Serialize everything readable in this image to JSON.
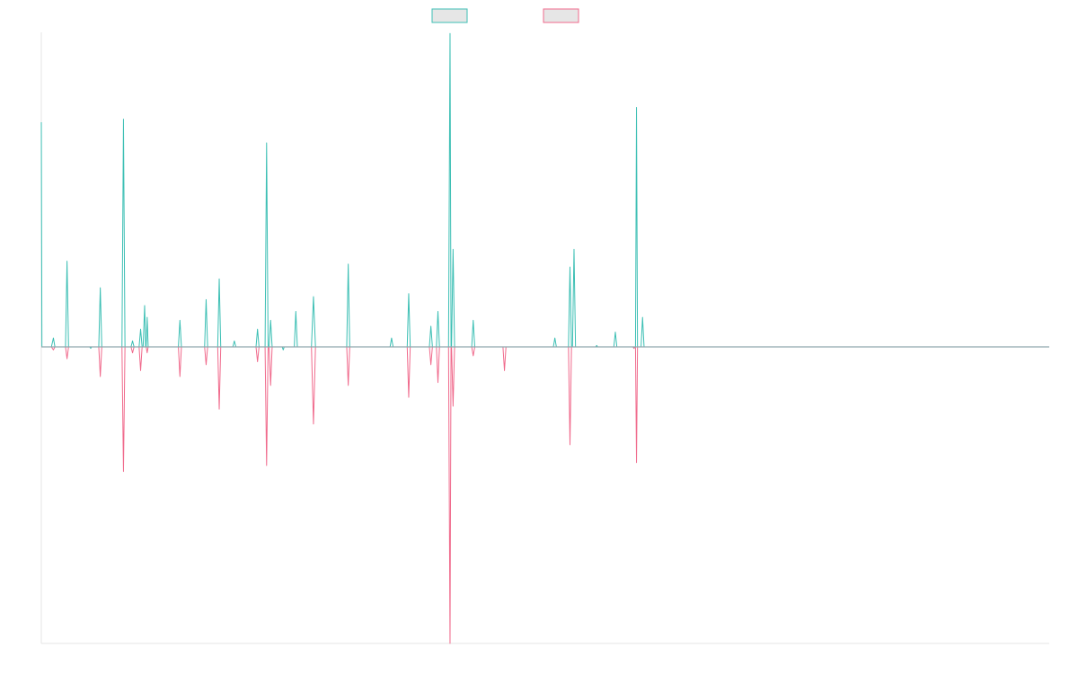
{
  "chart_data": {
    "type": "line",
    "title": "",
    "xlabel": "",
    "ylabel": "",
    "grid": false,
    "legend": "top-center",
    "xlim": [
      0,
      1000
    ],
    "ylim": [
      -1.0,
      1.0
    ],
    "baseline": 0,
    "series": [
      {
        "color": "#3cbfb4",
        "swatch_fill": "#e6e6e6",
        "points": [
          [
            0,
            0.76
          ],
          [
            0.6,
            0
          ],
          [
            10,
            0
          ],
          [
            12,
            0.03
          ],
          [
            13.5,
            0
          ],
          [
            24,
            0
          ],
          [
            25.5,
            0.29
          ],
          [
            27,
            0
          ],
          [
            48,
            0
          ],
          [
            49,
            -0.005
          ],
          [
            50,
            0
          ],
          [
            57,
            0
          ],
          [
            58.5,
            0.2
          ],
          [
            60,
            0
          ],
          [
            80,
            0
          ],
          [
            81.5,
            0.77
          ],
          [
            83,
            0
          ],
          [
            89,
            0
          ],
          [
            90.5,
            0.02
          ],
          [
            92,
            0
          ],
          [
            97,
            0
          ],
          [
            98.5,
            0.06
          ],
          [
            100,
            0
          ],
          [
            101,
            0
          ],
          [
            102.5,
            0.14
          ],
          [
            103.5,
            0
          ],
          [
            104,
            0
          ],
          [
            105,
            0.1
          ],
          [
            106,
            0
          ],
          [
            136,
            0
          ],
          [
            137.5,
            0.09
          ],
          [
            139,
            0
          ],
          [
            162,
            0
          ],
          [
            163.5,
            0.16
          ],
          [
            165,
            0
          ],
          [
            175,
            0
          ],
          [
            176.5,
            0.23
          ],
          [
            178,
            0
          ],
          [
            190,
            0
          ],
          [
            191.5,
            0.02
          ],
          [
            193,
            0
          ],
          [
            213,
            0
          ],
          [
            214.5,
            0.06
          ],
          [
            216,
            0
          ],
          [
            222,
            0
          ],
          [
            223.5,
            0.69
          ],
          [
            225,
            0
          ],
          [
            226,
            0
          ],
          [
            227.5,
            0.09
          ],
          [
            229,
            0
          ],
          [
            239,
            0
          ],
          [
            240,
            -0.01
          ],
          [
            241,
            0
          ],
          [
            251,
            0
          ],
          [
            252.5,
            0.12
          ],
          [
            254,
            0
          ],
          [
            268,
            0
          ],
          [
            270,
            0.17
          ],
          [
            272,
            0
          ],
          [
            303,
            0
          ],
          [
            304.5,
            0.28
          ],
          [
            306,
            0
          ],
          [
            346,
            0
          ],
          [
            347.5,
            0.03
          ],
          [
            349,
            0
          ],
          [
            363,
            0
          ],
          [
            364.5,
            0.18
          ],
          [
            366,
            0
          ],
          [
            385,
            0
          ],
          [
            386.5,
            0.07
          ],
          [
            388,
            0
          ],
          [
            392,
            0
          ],
          [
            393.5,
            0.12
          ],
          [
            395,
            0
          ],
          [
            404,
            0
          ],
          [
            405.5,
            1.06
          ],
          [
            406.5,
            0
          ],
          [
            407,
            0
          ],
          [
            408.5,
            0.33
          ],
          [
            410,
            0
          ],
          [
            427,
            0
          ],
          [
            428.5,
            0.09
          ],
          [
            430,
            0
          ],
          [
            508,
            0
          ],
          [
            509.5,
            0.03
          ],
          [
            511,
            0
          ],
          [
            523,
            0
          ],
          [
            524.5,
            0.27
          ],
          [
            526,
            0
          ],
          [
            527,
            0
          ],
          [
            528.5,
            0.33
          ],
          [
            530,
            0
          ],
          [
            550,
            0
          ],
          [
            551,
            0.005
          ],
          [
            552,
            0
          ],
          [
            568,
            0
          ],
          [
            569.5,
            0.05
          ],
          [
            571,
            0
          ],
          [
            587,
            0
          ],
          [
            588,
            -0.005
          ],
          [
            589,
            0
          ],
          [
            589.5,
            0
          ],
          [
            590.5,
            0.81
          ],
          [
            591.5,
            0
          ],
          [
            595,
            0
          ],
          [
            596.5,
            0.1
          ],
          [
            598,
            0
          ],
          [
            1000,
            0
          ]
        ]
      },
      {
        "color": "#f06a8c",
        "swatch_fill": "#e6e6e6",
        "points": [
          [
            0,
            0
          ],
          [
            10,
            0
          ],
          [
            12,
            -0.01
          ],
          [
            13.5,
            0
          ],
          [
            24,
            0
          ],
          [
            25.5,
            -0.04
          ],
          [
            27,
            0
          ],
          [
            57,
            0
          ],
          [
            58.5,
            -0.1
          ],
          [
            60,
            0
          ],
          [
            80,
            0
          ],
          [
            81.5,
            -0.42
          ],
          [
            83,
            0
          ],
          [
            89,
            0
          ],
          [
            90.5,
            -0.02
          ],
          [
            92,
            0
          ],
          [
            97,
            0
          ],
          [
            98.5,
            -0.08
          ],
          [
            100,
            0
          ],
          [
            104,
            0
          ],
          [
            105,
            -0.02
          ],
          [
            106,
            0
          ],
          [
            136,
            0
          ],
          [
            137.5,
            -0.1
          ],
          [
            139,
            0
          ],
          [
            162,
            0
          ],
          [
            163.5,
            -0.06
          ],
          [
            165,
            0
          ],
          [
            175,
            0
          ],
          [
            176.5,
            -0.21
          ],
          [
            178,
            0
          ],
          [
            213,
            0
          ],
          [
            214.5,
            -0.05
          ],
          [
            216,
            0
          ],
          [
            222,
            0
          ],
          [
            223.5,
            -0.4
          ],
          [
            225,
            0
          ],
          [
            226,
            0
          ],
          [
            227.5,
            -0.13
          ],
          [
            229,
            0
          ],
          [
            268,
            0
          ],
          [
            270,
            -0.26
          ],
          [
            272,
            0
          ],
          [
            303,
            0
          ],
          [
            304.5,
            -0.13
          ],
          [
            306,
            0
          ],
          [
            363,
            0
          ],
          [
            364.5,
            -0.17
          ],
          [
            366,
            0
          ],
          [
            385,
            0
          ],
          [
            386.5,
            -0.06
          ],
          [
            388,
            0
          ],
          [
            392,
            0
          ],
          [
            393.5,
            -0.12
          ],
          [
            395,
            0
          ],
          [
            404,
            0
          ],
          [
            405.5,
            -1.0
          ],
          [
            406.5,
            0
          ],
          [
            407,
            0
          ],
          [
            408.5,
            -0.2
          ],
          [
            410,
            0
          ],
          [
            427,
            0
          ],
          [
            428.5,
            -0.03
          ],
          [
            430,
            0
          ],
          [
            458,
            0
          ],
          [
            459.5,
            -0.08
          ],
          [
            461,
            0
          ],
          [
            523,
            0
          ],
          [
            524.5,
            -0.33
          ],
          [
            526,
            0
          ],
          [
            587,
            0
          ],
          [
            588,
            -0.005
          ],
          [
            589,
            0
          ],
          [
            589.5,
            0
          ],
          [
            590.5,
            -0.39
          ],
          [
            591.5,
            0
          ],
          [
            1000,
            0
          ]
        ]
      }
    ]
  }
}
